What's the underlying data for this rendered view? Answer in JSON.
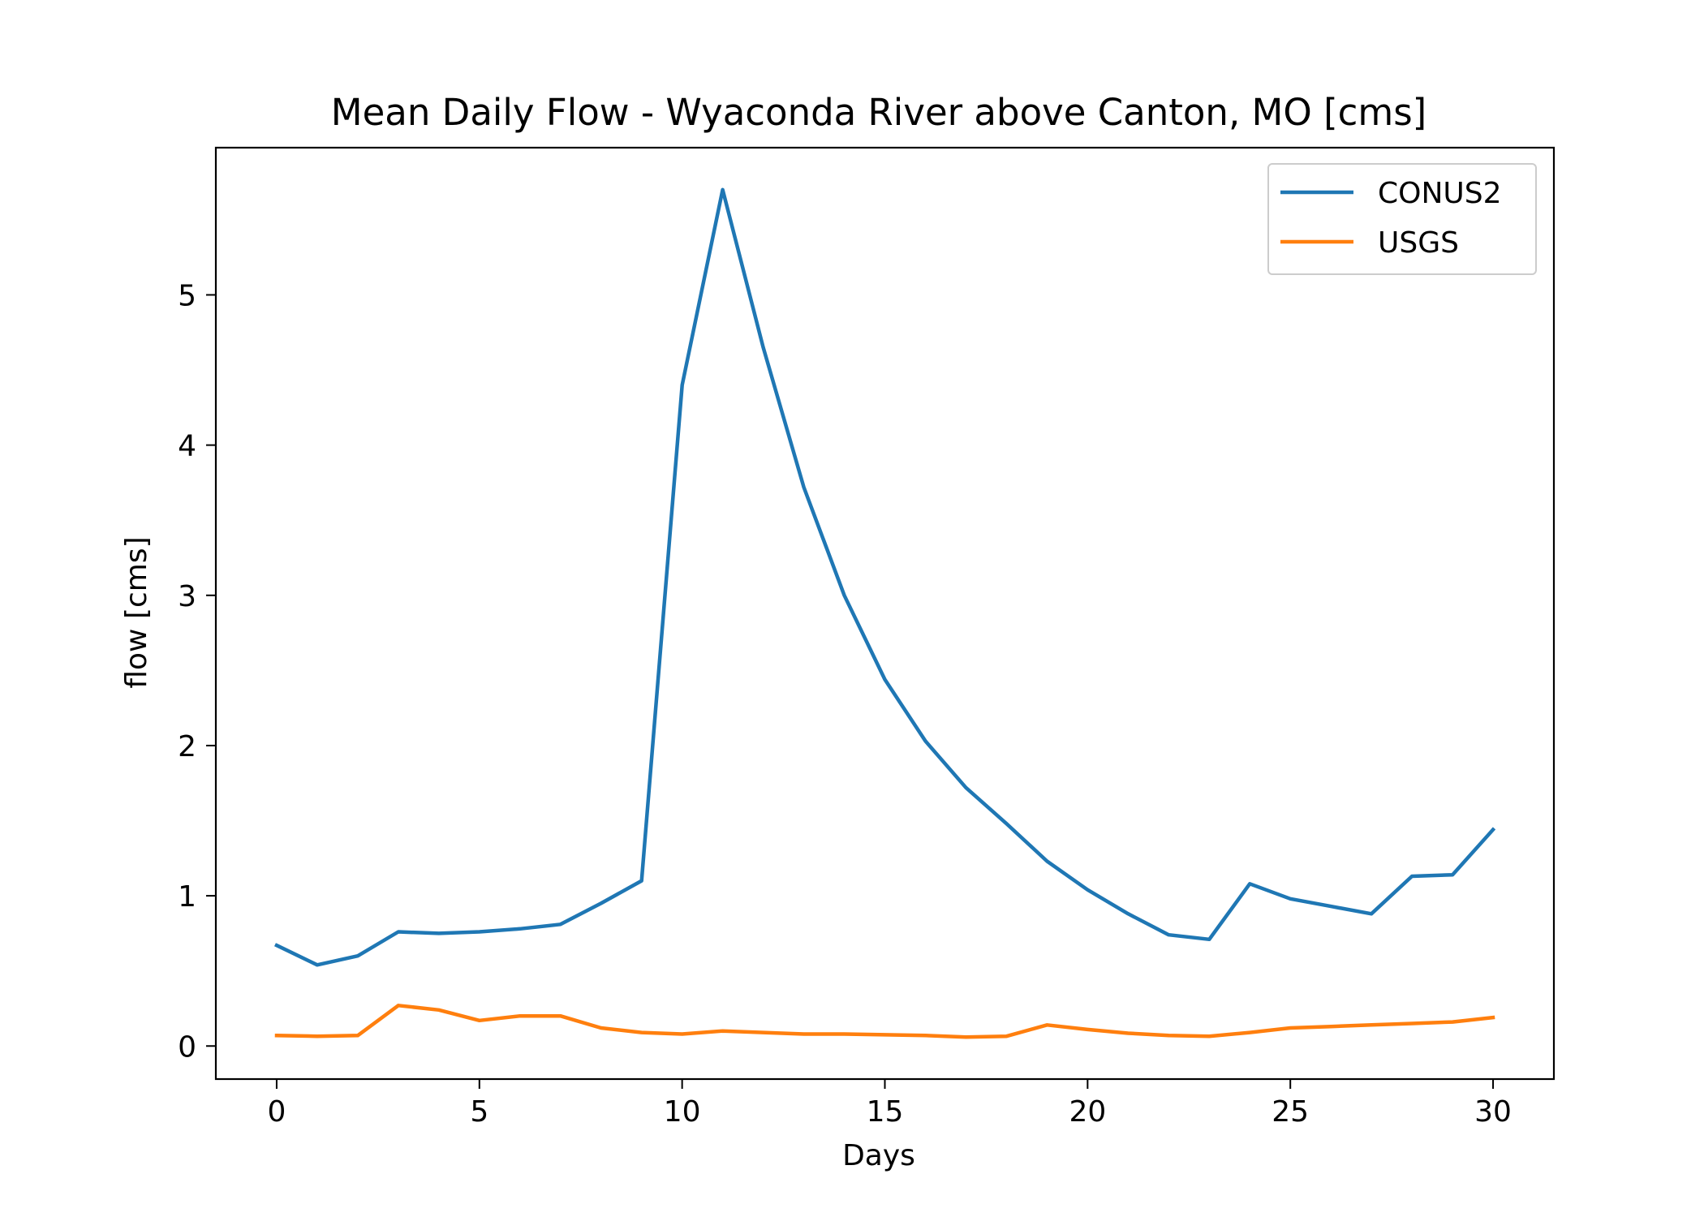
{
  "chart_data": {
    "type": "line",
    "title": "Mean Daily Flow - Wyaconda River above Canton, MO [cms]",
    "xlabel": "Days",
    "ylabel": "flow [cms]",
    "xlim": [
      -1.5,
      31.5
    ],
    "ylim": [
      -0.22,
      5.98
    ],
    "xticks": [
      0,
      5,
      10,
      15,
      20,
      25,
      30
    ],
    "yticks": [
      0,
      1,
      2,
      3,
      4,
      5
    ],
    "legend_position": "top-right",
    "grid": false,
    "x": [
      0,
      1,
      2,
      3,
      4,
      5,
      6,
      7,
      8,
      9,
      10,
      11,
      12,
      13,
      14,
      15,
      16,
      17,
      18,
      19,
      20,
      21,
      22,
      23,
      24,
      25,
      26,
      27,
      28,
      29,
      30
    ],
    "series": [
      {
        "name": "CONUS2",
        "color": "#1f77b4",
        "values": [
          0.67,
          0.54,
          0.6,
          0.76,
          0.75,
          0.76,
          0.78,
          0.81,
          0.95,
          1.1,
          4.4,
          5.7,
          4.65,
          3.72,
          3.0,
          2.44,
          2.03,
          1.72,
          1.48,
          1.23,
          1.04,
          0.88,
          0.74,
          0.71,
          1.08,
          0.98,
          0.93,
          0.88,
          1.13,
          1.14,
          1.44
        ]
      },
      {
        "name": "USGS",
        "color": "#ff7f0e",
        "values": [
          0.07,
          0.065,
          0.07,
          0.27,
          0.24,
          0.17,
          0.2,
          0.2,
          0.12,
          0.09,
          0.08,
          0.1,
          0.09,
          0.08,
          0.08,
          0.075,
          0.07,
          0.06,
          0.065,
          0.14,
          0.11,
          0.085,
          0.07,
          0.065,
          0.09,
          0.12,
          0.13,
          0.14,
          0.15,
          0.16,
          0.19
        ]
      }
    ]
  }
}
